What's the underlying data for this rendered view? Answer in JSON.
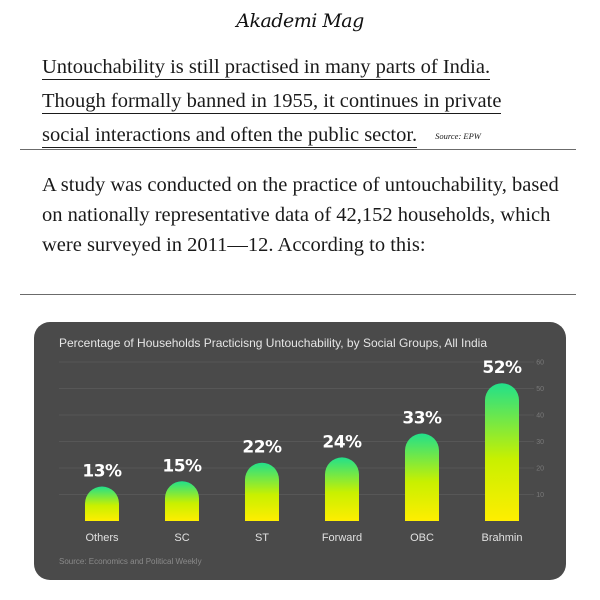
{
  "brand": {
    "name": "Akademi Mag"
  },
  "intro": {
    "lines": [
      "Untouchability is still practised in many parts of India.",
      "Though formally banned in 1955, it continues in private",
      "social interactions and often the public sector."
    ],
    "source": "Source: EPW"
  },
  "study": {
    "text": "A study was conducted on the practice of untouchability, based on nationally representative data of 42,152 households, which were surveyed in 2011—12. According to this:"
  },
  "colors": {
    "card_bg": "#4a4a4a",
    "bar_top": "#22e08a",
    "bar_bottom": "#ffee00",
    "grid": "#5c5c5c"
  },
  "chart_data": {
    "type": "bar",
    "title": "Percentage of Households Practicisng Untouchability, by Social Groups, All India",
    "categories": [
      "Others",
      "SC",
      "ST",
      "Forward",
      "OBC",
      "Brahmin"
    ],
    "values": [
      13,
      15,
      22,
      24,
      33,
      52
    ],
    "value_labels": [
      "13%",
      "15%",
      "22%",
      "24%",
      "33%",
      "52%"
    ],
    "ylim": [
      0,
      60
    ],
    "yticks": [
      10,
      20,
      30,
      40,
      50,
      60
    ],
    "grid": true,
    "source": "Source: Economics and Political Weekly"
  }
}
